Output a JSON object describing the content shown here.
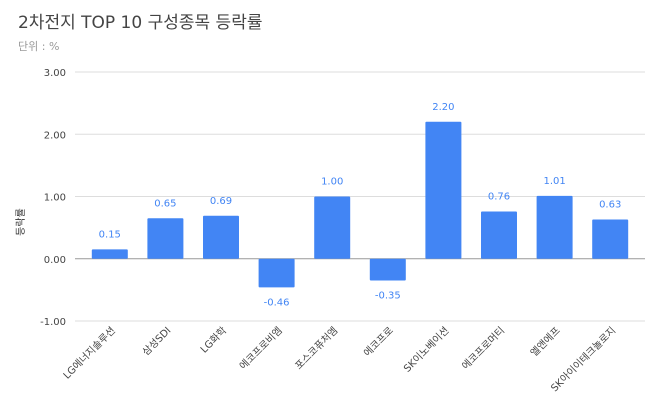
{
  "chart_data": {
    "type": "bar",
    "title": "2차전지 TOP 10 구성종목 등락률",
    "subtitle": "단위 : %",
    "xlabel": "",
    "ylabel": "등락률",
    "ylim": [
      -1,
      3
    ],
    "yticks": [
      "3.00",
      "2.00",
      "1.00",
      "0.00",
      "-1.00"
    ],
    "ytick_values": [
      3,
      2,
      1,
      0,
      -1
    ],
    "grid": true,
    "bar_color": "#4285f4",
    "label_color": "#4285f4",
    "categories": [
      "LG에너지솔루션",
      "삼성SDI",
      "LG화학",
      "에코프로비엠",
      "포스코퓨처엠",
      "에코프로",
      "SK이노베이션",
      "에코프로머티",
      "엘앤에프",
      "SK아이이테크놀로지"
    ],
    "values": [
      0.15,
      0.65,
      0.69,
      -0.46,
      1.0,
      -0.35,
      2.2,
      0.76,
      1.01,
      0.63
    ],
    "value_labels": [
      "0.15",
      "0.65",
      "0.69",
      "-0.46",
      "1.00",
      "-0.35",
      "2.20",
      "0.76",
      "1.01",
      "0.63"
    ]
  }
}
